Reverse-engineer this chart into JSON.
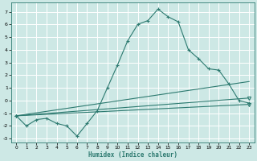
{
  "xlabel": "Humidex (Indice chaleur)",
  "background_color": "#cde8e5",
  "grid_color": "#b0d8d4",
  "line_color": "#2d7a70",
  "xlim": [
    -0.5,
    23.5
  ],
  "ylim": [
    -3.3,
    7.7
  ],
  "yticks": [
    -3,
    -2,
    -1,
    0,
    1,
    2,
    3,
    4,
    5,
    6,
    7
  ],
  "xticks": [
    0,
    1,
    2,
    3,
    4,
    5,
    6,
    7,
    8,
    9,
    10,
    11,
    12,
    13,
    14,
    15,
    16,
    17,
    18,
    19,
    20,
    21,
    22,
    23
  ],
  "main_line": {
    "x": [
      0,
      1,
      2,
      3,
      4,
      5,
      6,
      7,
      8,
      9,
      10,
      11,
      12,
      13,
      14,
      15,
      16,
      17,
      18,
      19,
      20,
      21,
      22,
      23
    ],
    "y": [
      -1.2,
      -2.0,
      -1.5,
      -1.4,
      -1.8,
      -2.0,
      -2.8,
      -1.8,
      -0.8,
      1.0,
      2.8,
      4.7,
      6.0,
      6.3,
      7.2,
      6.6,
      6.2,
      4.0,
      3.3,
      2.5,
      2.4,
      1.3,
      0.0,
      -0.2
    ]
  },
  "straight_lines": [
    {
      "x0": 0,
      "y0": -1.2,
      "x1": 23,
      "y1": -0.3,
      "marker_end": true
    },
    {
      "x0": 0,
      "y0": -1.2,
      "x1": 23,
      "y1": 0.2,
      "marker_end": true
    },
    {
      "x0": 0,
      "y0": -1.2,
      "x1": 23,
      "y1": 1.5,
      "marker_end": false
    }
  ]
}
